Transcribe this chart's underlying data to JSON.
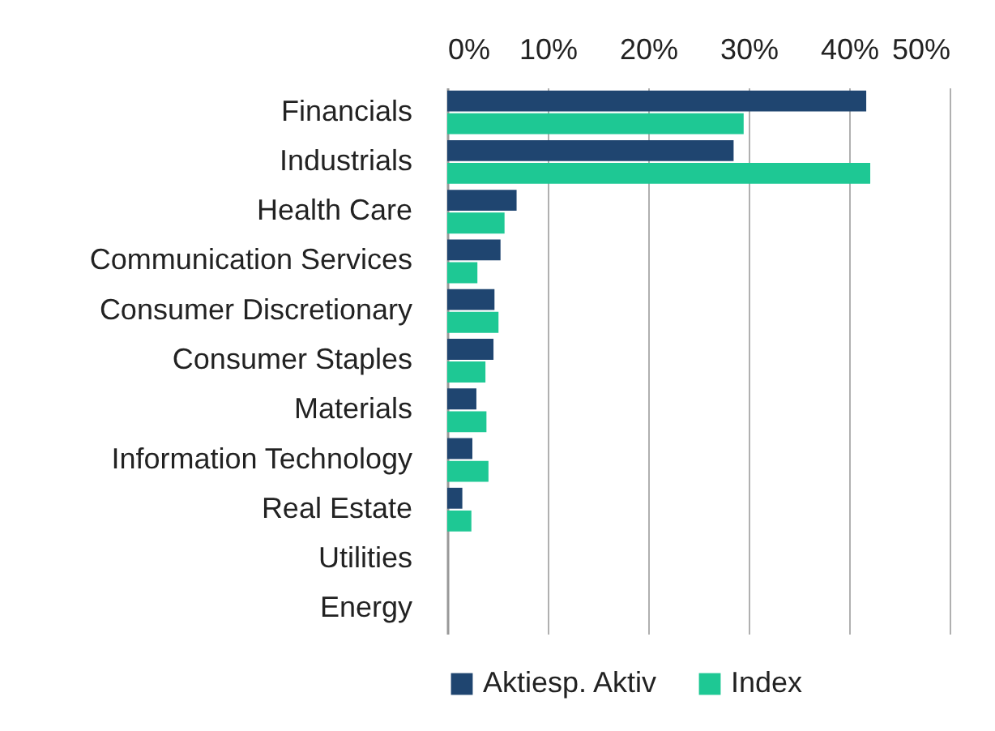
{
  "chart_data": {
    "type": "bar",
    "orientation": "horizontal",
    "categories": [
      "Financials",
      "Industrials",
      "Health Care",
      "Communication Services",
      "Consumer Discretionary",
      "Consumer Staples",
      "Materials",
      "Information Technology",
      "Real Estate",
      "Utilities",
      "Energy"
    ],
    "series": [
      {
        "name": "Aktiesp. Aktiv",
        "color": "#1f4570",
        "values": [
          41.7,
          28.5,
          6.9,
          5.3,
          4.7,
          4.6,
          2.9,
          2.5,
          1.5,
          0,
          0
        ]
      },
      {
        "name": "Index",
        "color": "#1ec894",
        "values": [
          29.5,
          42.1,
          5.7,
          3.0,
          5.1,
          3.8,
          3.9,
          4.1,
          2.4,
          0,
          0
        ]
      }
    ],
    "xlim": [
      0,
      50
    ],
    "xticks": [
      {
        "value": 0,
        "label": "0%"
      },
      {
        "value": 10,
        "label": "10%"
      },
      {
        "value": 20,
        "label": "20%"
      },
      {
        "value": 30,
        "label": "30%"
      },
      {
        "value": 40,
        "label": "40%"
      },
      {
        "value": 50,
        "label": "50%"
      }
    ],
    "grid": "x",
    "legend": "bottom"
  }
}
